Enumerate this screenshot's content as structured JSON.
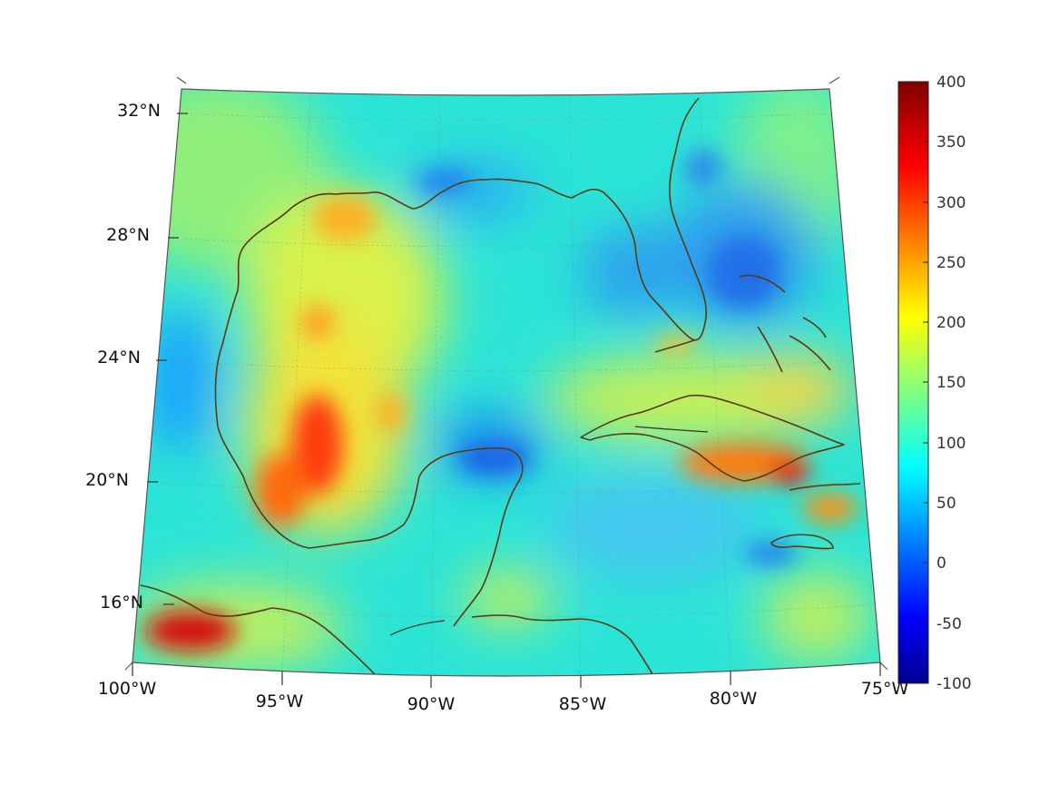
{
  "map": {
    "longitude_labels": [
      "100°W",
      "95°W",
      "90°W",
      "85°W",
      "80°W",
      "75°W"
    ],
    "latitude_labels": [
      "16°N",
      "20°N",
      "24°N",
      "28°N",
      "32°N"
    ],
    "extent": {
      "lon_min": -100,
      "lon_max": -75,
      "lat_min": 14,
      "lat_max": 32.5
    },
    "grid": "dotted graticule every 5° longitude / 4° latitude",
    "projection": "conic",
    "coastline_color": "#5a3a10"
  },
  "colorbar": {
    "colormap": "jet",
    "min": -100,
    "max": 400,
    "tick_labels": [
      "400",
      "350",
      "300",
      "250",
      "200",
      "150",
      "100",
      "50",
      "0",
      "-50",
      "-100"
    ],
    "colors": [
      "#00008f",
      "#0000ff",
      "#00ffff",
      "#ffff00",
      "#ff0000",
      "#800000"
    ]
  }
}
